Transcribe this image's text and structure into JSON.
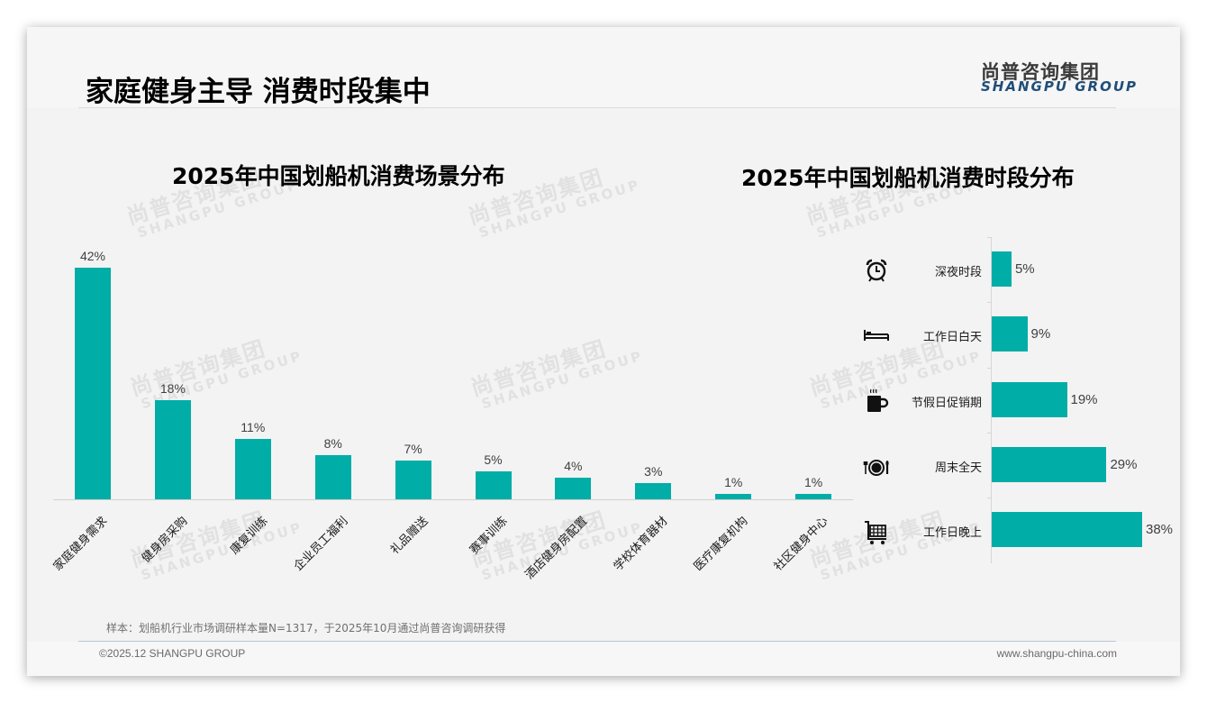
{
  "header": {
    "title": "家庭健身主导 消费时段集中",
    "logo_cn": "尚普咨询集团",
    "logo_en": "SHANGPU GROUP"
  },
  "watermark": {
    "cn": "尚普咨询集团",
    "en": "SHANGPU GROUP"
  },
  "colors": {
    "bar": "#00ada7",
    "logo_en": "#1f4e79",
    "background": "#f3f3f3"
  },
  "chart_data": [
    {
      "type": "bar",
      "title": "2025年中国划船机消费场景分布",
      "categories": [
        "家庭健身需求",
        "健身房采购",
        "康复训练",
        "企业员工福利",
        "礼品赠送",
        "赛事训练",
        "酒店健身房配置",
        "学校体育器材",
        "医疗康复机构",
        "社区健身中心"
      ],
      "values": [
        42,
        18,
        11,
        8,
        7,
        5,
        4,
        3,
        1,
        1
      ],
      "value_labels": [
        "42%",
        "18%",
        "11%",
        "8%",
        "7%",
        "5%",
        "4%",
        "3%",
        "1%",
        "1%"
      ],
      "unit": "%",
      "xlabel": "",
      "ylabel": "",
      "ylim": [
        0,
        45
      ],
      "grid": false,
      "legend": "none",
      "label_rotation": -45
    },
    {
      "type": "bar",
      "orientation": "horizontal",
      "title": "2025年中国划船机消费时段分布",
      "categories": [
        "深夜时段",
        "工作日白天",
        "节假日促销期",
        "周末全天",
        "工作日晚上"
      ],
      "icons": [
        "alarm-clock-icon",
        "bed-icon",
        "coffee-cup-icon",
        "plate-cutlery-icon",
        "shopping-cart-icon"
      ],
      "values": [
        5,
        9,
        19,
        29,
        38
      ],
      "value_labels": [
        "5%",
        "9%",
        "19%",
        "29%",
        "38%"
      ],
      "unit": "%",
      "xlabel": "",
      "ylabel": "",
      "xlim": [
        0,
        40
      ],
      "grid": false,
      "legend": "none"
    }
  ],
  "footer": {
    "note": "样本：划船机行业市场调研样本量N=1317，于2025年10月通过尚普咨询调研获得",
    "copyright": "©2025.12 SHANGPU GROUP",
    "website": "www.shangpu-china.com"
  }
}
